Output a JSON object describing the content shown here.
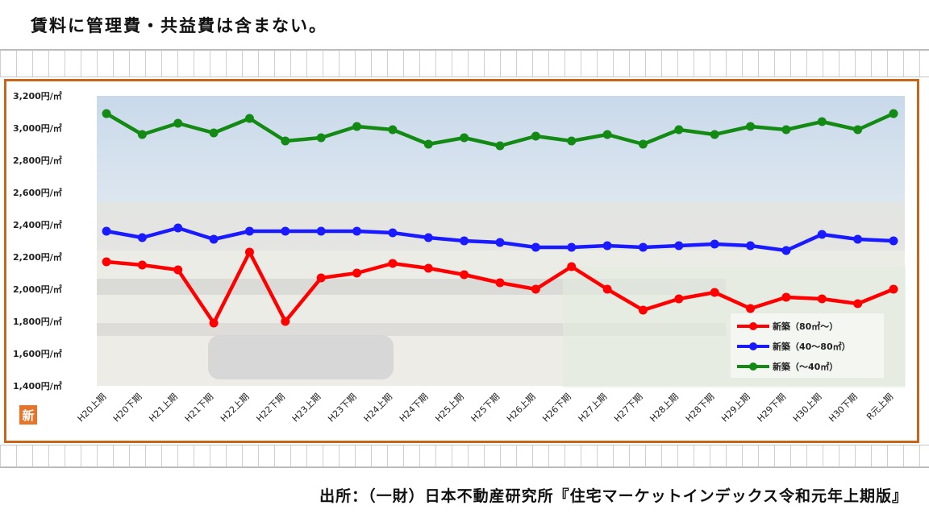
{
  "note": {
    "text": "賃料に管理費・共益費は含まない。"
  },
  "source": {
    "text": "出所：（一財）日本不動産研究所『住宅マーケットインデックス令和元年上期版』"
  },
  "badge": {
    "text": "新"
  },
  "colors": {
    "frame": "#c8651b",
    "badge": "#e8742a",
    "red": "#ff0000",
    "blue": "#1a1aff",
    "green": "#138a13"
  },
  "chart_data": {
    "type": "line",
    "background": "photo of an apartment building (faded)",
    "categories": [
      "H20上期",
      "H20下期",
      "H21上期",
      "H21下期",
      "H22上期",
      "H22下期",
      "H23上期",
      "H23下期",
      "H24上期",
      "H24下期",
      "H25上期",
      "H25下期",
      "H26上期",
      "H26下期",
      "H27上期",
      "H27下期",
      "H28上期",
      "H28下期",
      "H29上期",
      "H29下期",
      "H30上期",
      "H30下期",
      "R元上期"
    ],
    "yticks": [
      "1,400円/㎡",
      "1,600円/㎡",
      "1,800円/㎡",
      "2,000円/㎡",
      "2,200円/㎡",
      "2,400円/㎡",
      "2,600円/㎡",
      "2,800円/㎡",
      "3,000円/㎡",
      "3,200円/㎡"
    ],
    "ylim": [
      1400,
      3200
    ],
    "grid": false,
    "legend_position": "bottom-right",
    "series": [
      {
        "name": "新築（80㎡～）",
        "color": "#ff0000",
        "values": [
          2170,
          2150,
          2120,
          1790,
          2230,
          1800,
          2070,
          2100,
          2160,
          2130,
          2090,
          2040,
          2000,
          2140,
          2000,
          1870,
          1940,
          1980,
          1880,
          1950,
          1940,
          1910,
          2000
        ]
      },
      {
        "name": "新築（40～80㎡）",
        "color": "#1a1aff",
        "values": [
          2360,
          2320,
          2380,
          2310,
          2360,
          2360,
          2360,
          2360,
          2350,
          2320,
          2300,
          2290,
          2260,
          2260,
          2270,
          2260,
          2270,
          2280,
          2270,
          2240,
          2340,
          2310,
          2300
        ]
      },
      {
        "name": "新築（～40㎡）",
        "color": "#138a13",
        "values": [
          3090,
          2960,
          3030,
          2970,
          3060,
          2920,
          2940,
          3010,
          2990,
          2900,
          2940,
          2890,
          2950,
          2920,
          2960,
          2900,
          2990,
          2960,
          3010,
          2990,
          3040,
          2990,
          3090
        ]
      }
    ]
  }
}
